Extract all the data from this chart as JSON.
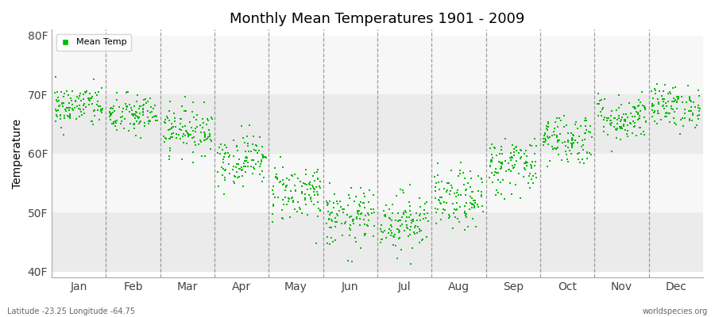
{
  "title": "Monthly Mean Temperatures 1901 - 2009",
  "ylabel": "Temperature",
  "bg_color": "#ffffff",
  "plot_bg_color": "#ffffff",
  "dot_color": "#00bb00",
  "dot_size": 3,
  "yticks": [
    40,
    50,
    60,
    70,
    80
  ],
  "ytick_labels": [
    "40F",
    "50F",
    "60F",
    "70F",
    "80F"
  ],
  "ylim": [
    39,
    81
  ],
  "months": [
    "Jan",
    "Feb",
    "Mar",
    "Apr",
    "May",
    "Jun",
    "Jul",
    "Aug",
    "Sep",
    "Oct",
    "Nov",
    "Dec"
  ],
  "month_means": [
    68.0,
    66.5,
    64.0,
    59.0,
    53.5,
    49.0,
    48.5,
    52.0,
    58.0,
    62.5,
    66.0,
    68.0
  ],
  "month_stds": [
    1.8,
    1.8,
    2.0,
    2.2,
    2.5,
    2.5,
    2.5,
    2.5,
    2.5,
    2.2,
    2.0,
    1.8
  ],
  "n_years": 109,
  "subtitle_left": "Latitude -23.25 Longitude -64.75",
  "subtitle_right": "worldspecies.org",
  "legend_label": "Mean Temp",
  "band_light": "#ebebeb",
  "band_white": "#f7f7f7"
}
